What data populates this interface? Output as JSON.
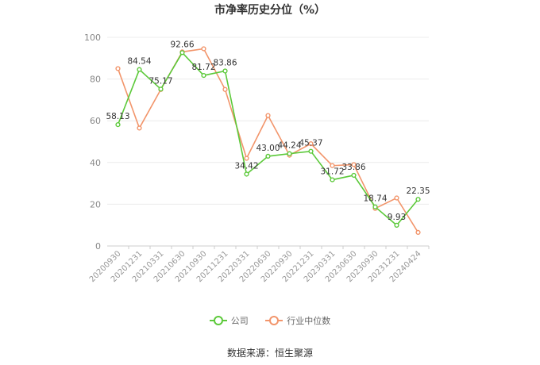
{
  "chart_data": {
    "type": "line",
    "title": "市净率历史分位（%）",
    "categories": [
      "20200930",
      "20201231",
      "20210331",
      "20210630",
      "20210930",
      "20211231",
      "20220331",
      "20220630",
      "20220930",
      "20221231",
      "20230331",
      "20230630",
      "20230930",
      "20231231",
      "20240424"
    ],
    "series": [
      {
        "name": "公司",
        "color": "#5cc93a",
        "values": [
          58.13,
          84.54,
          75.17,
          92.66,
          81.72,
          83.86,
          34.42,
          43.0,
          44.24,
          45.37,
          31.72,
          33.86,
          18.74,
          9.93,
          22.35
        ],
        "labels": [
          "58.13",
          "84.54",
          "75.17",
          "92.66",
          "81.72",
          "83.86",
          "34.42",
          "43.00",
          "44.24",
          "45.37",
          "31.72",
          "33.86",
          "18.74",
          "9.93",
          "22.35"
        ]
      },
      {
        "name": "行业中位数",
        "color": "#f2956b",
        "values": [
          85,
          56.5,
          75,
          93,
          94.5,
          75,
          42,
          62.5,
          43.5,
          49,
          38.5,
          39,
          18,
          23,
          6.5
        ]
      }
    ],
    "ylim": [
      0,
      100
    ],
    "yticks": [
      0,
      20,
      40,
      60,
      80,
      100
    ],
    "grid": true,
    "legend_position": "bottom"
  },
  "source": "数据来源：恒生聚源"
}
